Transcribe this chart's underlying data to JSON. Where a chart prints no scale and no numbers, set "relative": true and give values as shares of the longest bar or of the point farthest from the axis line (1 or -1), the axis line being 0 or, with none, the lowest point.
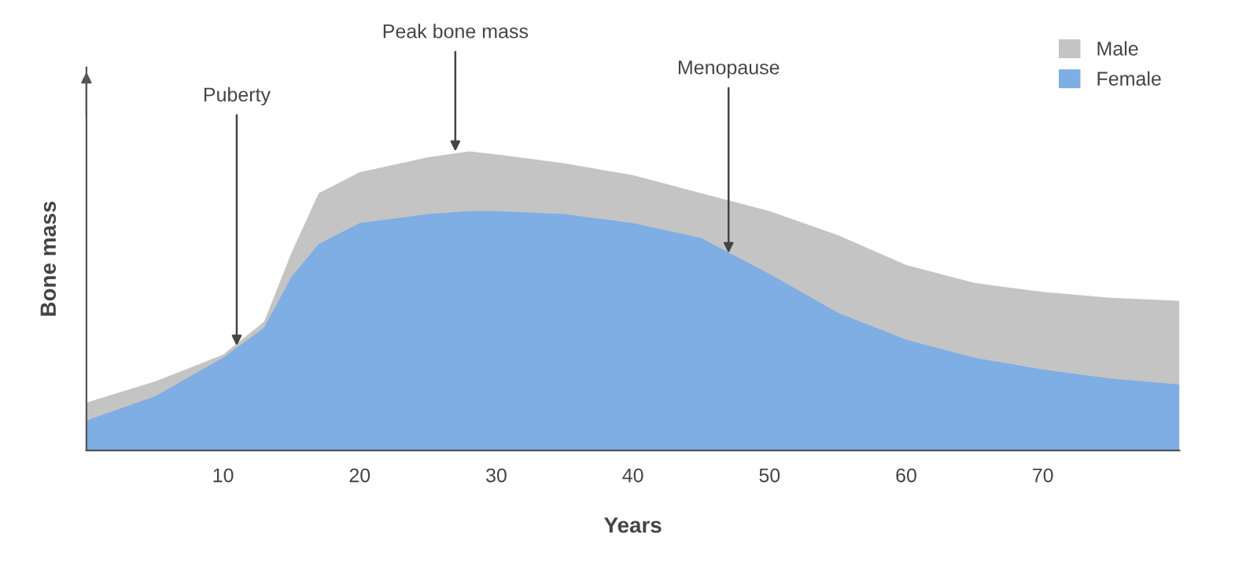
{
  "chart_data": {
    "type": "area",
    "relative": true,
    "xlabel": "Years",
    "ylabel": "Bone mass",
    "x": [
      0,
      5,
      10,
      13,
      15,
      17,
      20,
      25,
      28,
      30,
      35,
      40,
      45,
      50,
      55,
      60,
      65,
      70,
      75,
      80
    ],
    "series": [
      {
        "name": "Male",
        "color": "#c4c4c4",
        "values": [
          0.16,
          0.23,
          0.32,
          0.43,
          0.66,
          0.86,
          0.93,
          0.98,
          1.0,
          0.99,
          0.96,
          0.92,
          0.86,
          0.8,
          0.72,
          0.62,
          0.56,
          0.53,
          0.51,
          0.5
        ]
      },
      {
        "name": "Female",
        "color": "#7eaee3",
        "values": [
          0.1,
          0.18,
          0.31,
          0.41,
          0.58,
          0.69,
          0.76,
          0.79,
          0.8,
          0.8,
          0.79,
          0.76,
          0.71,
          0.59,
          0.46,
          0.37,
          0.31,
          0.27,
          0.24,
          0.22
        ]
      }
    ],
    "xlim": [
      0,
      80
    ],
    "xticks": [
      10,
      20,
      30,
      40,
      50,
      60,
      70
    ],
    "annotations": [
      {
        "text": "Puberty",
        "x": 11,
        "y": 0.35
      },
      {
        "text": "Peak bone mass",
        "x": 27,
        "y": 1.0
      },
      {
        "text": "Menopause",
        "x": 47,
        "y": 0.66
      }
    ],
    "legend": "top right"
  }
}
